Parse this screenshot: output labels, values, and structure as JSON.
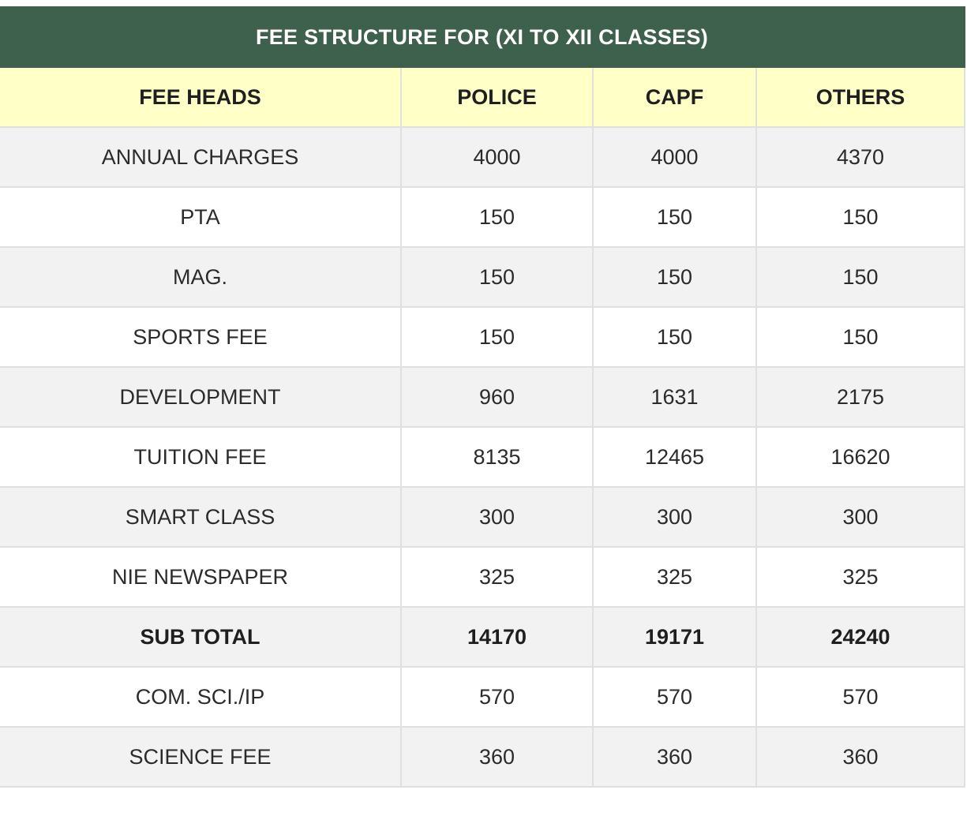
{
  "table": {
    "title": "FEE STRUCTURE FOR (XI TO XII CLASSES)",
    "headers": [
      "FEE HEADS",
      "POLICE",
      "CAPF",
      "OTHERS"
    ],
    "rows": [
      {
        "head": "ANNUAL CHARGES",
        "police": "4000",
        "capf": "4000",
        "others": "4370",
        "bold": false
      },
      {
        "head": "PTA",
        "police": "150",
        "capf": "150",
        "others": "150",
        "bold": false
      },
      {
        "head": "MAG.",
        "police": "150",
        "capf": "150",
        "others": "150",
        "bold": false
      },
      {
        "head": "SPORTS FEE",
        "police": "150",
        "capf": "150",
        "others": "150",
        "bold": false
      },
      {
        "head": "DEVELOPMENT",
        "police": "960",
        "capf": "1631",
        "others": "2175",
        "bold": false
      },
      {
        "head": "TUITION FEE",
        "police": "8135",
        "capf": "12465",
        "others": "16620",
        "bold": false
      },
      {
        "head": "SMART CLASS",
        "police": "300",
        "capf": "300",
        "others": "300",
        "bold": false
      },
      {
        "head": "NIE NEWSPAPER",
        "police": "325",
        "capf": "325",
        "others": "325",
        "bold": false
      },
      {
        "head": "SUB TOTAL",
        "police": "14170",
        "capf": "19171",
        "others": "24240",
        "bold": true
      },
      {
        "head": "COM. SCI./IP",
        "police": "570",
        "capf": "570",
        "others": "570",
        "bold": false
      },
      {
        "head": "SCIENCE FEE",
        "police": "360",
        "capf": "360",
        "others": "360",
        "bold": false
      }
    ]
  },
  "colors": {
    "title_bg": "#3e614d",
    "header_bg": "#ffffc8",
    "row_alt_bg": "#f2f2f2"
  }
}
